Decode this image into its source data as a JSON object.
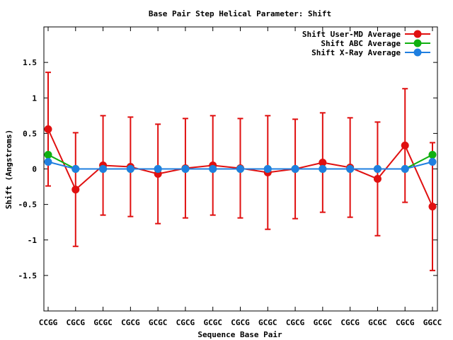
{
  "chart_data": {
    "type": "line",
    "title": "Base Pair Step Helical Parameter: Shift",
    "xlabel": "Sequence Base Pair",
    "ylabel": "Shift (Angstroms)",
    "ylim": [
      -2,
      2
    ],
    "yticks": [
      -1.5,
      -1,
      -0.5,
      0,
      0.5,
      1,
      1.5
    ],
    "ytick_labels": [
      "-1.5",
      "-1",
      "-0.5",
      "0",
      "0.5",
      "1",
      "1.5"
    ],
    "categories": [
      "CCGG",
      "CGCG",
      "GCGC",
      "CGCG",
      "GCGC",
      "CGCG",
      "GCGC",
      "CGCG",
      "GCGC",
      "CGCG",
      "GCGC",
      "CGCG",
      "GCGC",
      "CGCG",
      "GGCC"
    ],
    "grid": false,
    "legend_position": "top-right",
    "series": [
      {
        "name": "Shift User-MD Average",
        "color": "#e01010",
        "values": [
          0.56,
          -0.29,
          0.05,
          0.03,
          -0.07,
          0.01,
          0.05,
          0.01,
          -0.05,
          0.0,
          0.09,
          0.02,
          -0.14,
          0.33,
          -0.53
        ],
        "errors": [
          0.8,
          0.8,
          0.7,
          0.7,
          0.7,
          0.7,
          0.7,
          0.7,
          0.8,
          0.7,
          0.7,
          0.7,
          0.8,
          0.8,
          0.9
        ]
      },
      {
        "name": "Shift ABC Average",
        "color": "#10b010",
        "values": [
          0.2,
          0.0,
          0.0,
          0.0,
          0.0,
          0.0,
          0.0,
          0.0,
          0.0,
          0.0,
          0.0,
          0.0,
          0.0,
          0.0,
          0.2
        ]
      },
      {
        "name": "Shift X-Ray Average",
        "color": "#1f7fe0",
        "values": [
          0.1,
          0.0,
          0.0,
          0.0,
          0.0,
          0.0,
          0.0,
          0.0,
          0.0,
          0.0,
          0.0,
          0.0,
          0.0,
          0.0,
          0.1
        ]
      }
    ]
  }
}
